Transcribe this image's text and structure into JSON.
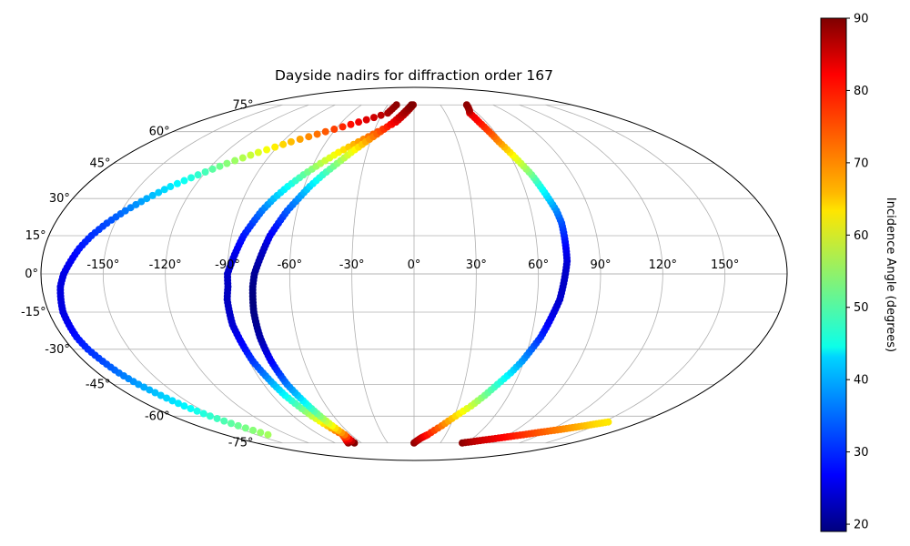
{
  "chart_data": {
    "type": "scatter",
    "projection": "mollweide",
    "title": "Dayside nadirs for diffraction order 167",
    "xlabel": "",
    "ylabel": "",
    "grid": true,
    "lon_ticks": [
      -150,
      -120,
      -90,
      -60,
      -30,
      0,
      30,
      60,
      90,
      120,
      150
    ],
    "lon_tick_labels": [
      "-150°",
      "-120°",
      "-90°",
      "-60°",
      "-30°",
      "0°",
      "30°",
      "60°",
      "90°",
      "120°",
      "150°"
    ],
    "lat_ticks": [
      75,
      60,
      45,
      30,
      15,
      0,
      -15,
      -30,
      -45,
      -60,
      -75
    ],
    "lat_tick_labels": [
      "75°",
      "60°",
      "45°",
      "30°",
      "15°",
      "0°",
      "-15°",
      "-30°",
      "-45°",
      "-60°",
      "-75°"
    ],
    "xlim": [
      -180,
      180
    ],
    "ylim": [
      -90,
      90
    ],
    "colorbar": {
      "label": "Incidence Angle (degrees)",
      "colormap": "jet",
      "range": [
        19,
        90
      ],
      "ticks": [
        20,
        30,
        40,
        50,
        60,
        70,
        80,
        90
      ],
      "tick_labels": [
        "20",
        "30",
        "40",
        "50",
        "60",
        "70",
        "80",
        "90"
      ]
    },
    "tracks": [
      {
        "lat": [
          -70,
          -65,
          -60,
          -55,
          -50,
          -45,
          -40,
          -35,
          -30,
          -25,
          -20,
          -15,
          -10,
          -5,
          0,
          5,
          10,
          15,
          20,
          25,
          30,
          35,
          40,
          45,
          50,
          55,
          60,
          65,
          70,
          75
        ],
        "lon": [
          -139,
          -146,
          -152,
          -157,
          -161,
          -165,
          -168,
          -170,
          -172,
          -173,
          -173,
          -173,
          -172,
          -171,
          -169,
          -166,
          -163,
          -159,
          -154,
          -148,
          -141,
          -133,
          -123,
          -112,
          -99,
          -84,
          -66,
          -46,
          -25,
          -20
        ],
        "incidence": [
          57,
          53,
          49,
          45,
          42,
          39,
          36,
          33,
          31,
          29,
          27,
          26,
          25.5,
          25.5,
          26,
          27,
          29,
          31,
          33,
          36,
          40,
          44,
          49,
          55,
          61,
          68,
          75,
          82,
          87,
          89
        ]
      },
      {
        "lat": [
          -75,
          -72,
          -70,
          -65,
          -60,
          -55,
          -50,
          -45,
          -40,
          -35,
          -30,
          -25,
          -20,
          -15,
          -10,
          -5,
          0,
          5,
          10,
          15,
          20,
          25,
          30,
          35,
          40,
          45,
          50,
          55,
          60,
          65,
          70,
          75
        ],
        "lon": [
          -75,
          -70,
          -68,
          -72,
          -76,
          -79,
          -82,
          -84,
          -86,
          -88,
          -89,
          -90,
          -91,
          -91,
          -91,
          -90,
          -90,
          -88,
          -86,
          -84,
          -81,
          -78,
          -74,
          -69,
          -63,
          -56,
          -48,
          -38,
          -27,
          -15,
          -8,
          -1
        ],
        "incidence": [
          89,
          80,
          76,
          67,
          59,
          52,
          46,
          41,
          36,
          32,
          29,
          27,
          25,
          24,
          23.5,
          23.5,
          24,
          25,
          27,
          29,
          32,
          36,
          41,
          46,
          52,
          58,
          64,
          70,
          76,
          82,
          86,
          89
        ]
      },
      {
        "lat": [
          -75,
          -70,
          -65,
          -60,
          -55,
          -50,
          -45,
          -40,
          -35,
          -30,
          -25,
          -20,
          -15,
          -10,
          -5,
          0,
          5,
          10,
          15,
          20,
          25,
          30,
          35,
          40,
          45,
          50,
          55,
          60,
          65,
          70,
          75
        ],
        "lon": [
          -68,
          -66,
          -68,
          -70,
          -72,
          -74,
          -76,
          -77,
          -78,
          -78.5,
          -79,
          -79,
          -79,
          -78.5,
          -78,
          -77,
          -75,
          -73,
          -71,
          -68,
          -65,
          -61,
          -57,
          -52,
          -46,
          -40,
          -33,
          -25,
          -17,
          -10,
          -3
        ],
        "incidence": [
          90,
          73,
          63,
          55,
          48,
          42,
          37,
          32,
          28,
          25,
          22,
          20.5,
          19.5,
          19,
          19.5,
          20.5,
          22,
          24,
          27,
          30,
          34,
          38,
          43,
          49,
          55,
          62,
          69,
          76,
          82,
          87,
          90
        ]
      },
      {
        "lat": [
          -75,
          -72,
          -70,
          -65,
          -60,
          -55,
          -50,
          -45,
          -40,
          -35,
          -30,
          -25,
          -20,
          -15,
          -10,
          -5,
          0,
          5,
          10,
          15,
          20,
          25,
          30,
          35,
          40,
          45,
          50,
          55,
          60,
          65,
          70,
          72,
          75
        ],
        "lon": [
          0,
          7,
          13,
          23,
          31,
          39,
          45,
          50,
          55,
          59,
          62,
          65,
          67,
          69,
          71,
          72,
          73,
          74,
          74,
          74,
          74,
          73,
          71,
          69,
          67,
          64,
          61,
          58,
          56,
          54,
          53,
          56,
          60
        ],
        "incidence": [
          89,
          85,
          80,
          73,
          66,
          60,
          54,
          49,
          44,
          39,
          35,
          31,
          28,
          26,
          24.5,
          24,
          24,
          25,
          27,
          30,
          33,
          37,
          42,
          47,
          53,
          59,
          65,
          71,
          76,
          80,
          83,
          87,
          89
        ]
      },
      {
        "lat": [
          -75,
          -74,
          -73,
          -72,
          -71,
          -70,
          -69,
          -68,
          -67,
          -66,
          -65,
          -64,
          -63
        ],
        "lon": [
          55,
          66,
          76,
          86,
          95,
          104,
          112,
          120,
          128,
          135,
          142,
          148,
          154
        ],
        "incidence": [
          89,
          86,
          84,
          82,
          80,
          78,
          76,
          74,
          72,
          70,
          68,
          66,
          65
        ]
      }
    ]
  }
}
